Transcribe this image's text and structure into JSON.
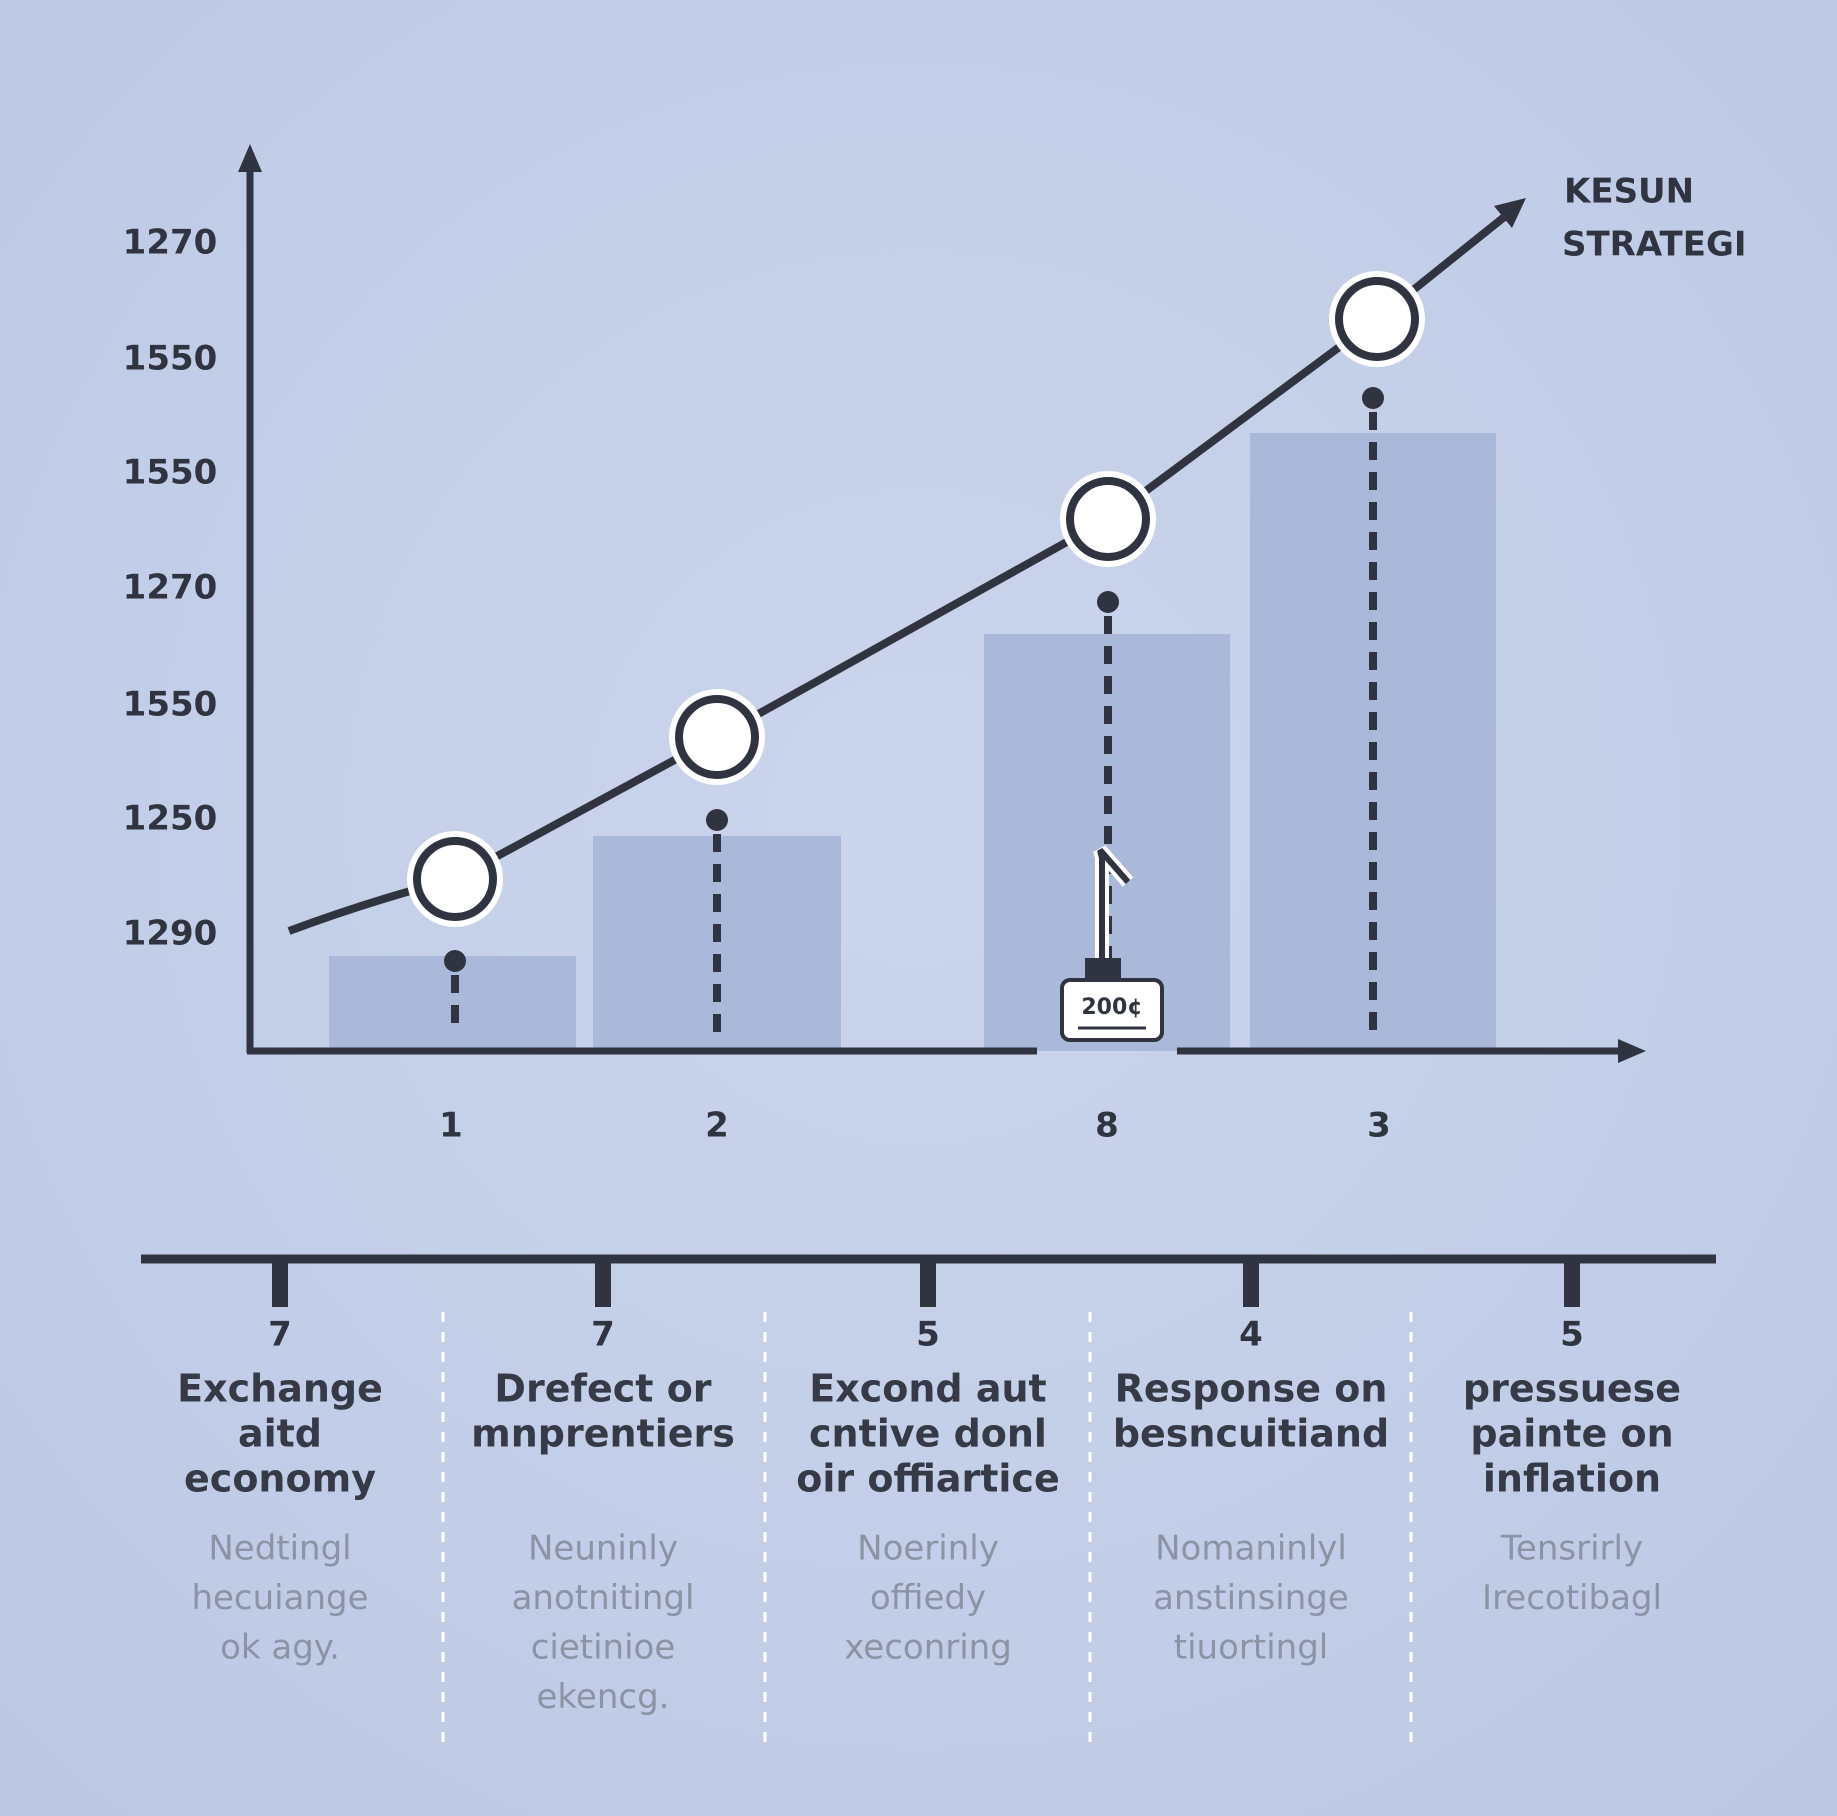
{
  "chart": {
    "y_axis_labels": [
      "1270",
      "1550",
      "1550",
      "1270",
      "1550",
      "1250",
      "1290"
    ],
    "x_axis_labels": [
      "1",
      "2",
      "8",
      "3"
    ],
    "series_label": [
      "KESUN",
      "STRATEGI"
    ],
    "marker_label": "200¢"
  },
  "timeline": {
    "items": [
      {
        "number": "7",
        "title": [
          "Exchange",
          "aitd",
          "economy"
        ],
        "description": [
          "Nedtingl",
          "hecuiange",
          "ok agy."
        ]
      },
      {
        "number": "7",
        "title": [
          "Drefect or",
          "mnprentiers"
        ],
        "description": [
          "Neuninly",
          "anotnitingl",
          "cietinioe",
          "ekencg."
        ]
      },
      {
        "number": "5",
        "title": [
          "Excond aut",
          "cntive donl",
          "oir offiartice"
        ],
        "description": [
          "Noerinly",
          "offiedy",
          "xeconring"
        ]
      },
      {
        "number": "4",
        "title": [
          "Response on",
          "besncuitiand"
        ],
        "description": [
          "Nomaninlyl",
          "anstinsinge",
          "tiuortingl"
        ]
      },
      {
        "number": "5",
        "title": [
          "pressuese",
          "painte on",
          "inflation"
        ],
        "description": [
          "Tensrirly",
          "Irecotibagl"
        ]
      }
    ]
  }
}
